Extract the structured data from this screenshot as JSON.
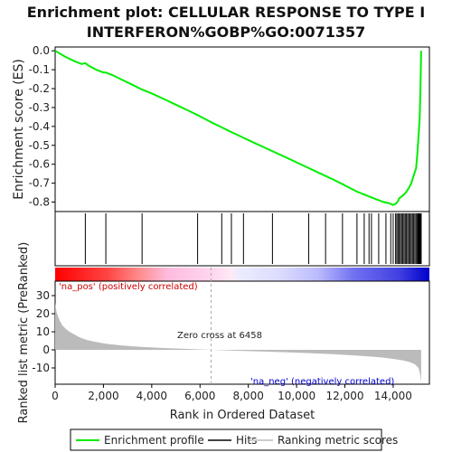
{
  "chart_data": {
    "type": "line",
    "title_lines": [
      "Enrichment plot: CELLULAR RESPONSE TO TYPE I",
      "INTERFERON%GOBP%GO:0071357"
    ],
    "top_panel": {
      "ylabel": "Enrichment score (ES)",
      "ylim": [
        -0.85,
        0.02
      ],
      "yticks": [
        0.0,
        -0.1,
        -0.2,
        -0.3,
        -0.4,
        -0.5,
        -0.6,
        -0.7,
        -0.8
      ],
      "ytick_labels": [
        "0.0",
        "-0.1",
        "-0.2",
        "-0.3",
        "-0.4",
        "-0.5",
        "-0.6",
        "-0.7",
        "-0.8"
      ],
      "series": [
        {
          "name": "Enrichment profile",
          "color": "#00ee00",
          "x": [
            0,
            400,
            800,
            1100,
            1250,
            1400,
            1700,
            2000,
            2100,
            2400,
            2800,
            3200,
            3600,
            4000,
            4500,
            5000,
            5500,
            5900,
            6200,
            6500,
            6900,
            7300,
            7800,
            8300,
            8900,
            9500,
            10000,
            10500,
            11000,
            11500,
            11900,
            12200,
            12500,
            12800,
            13000,
            13200,
            13400,
            13600,
            13800,
            14000,
            14100,
            14200,
            14250,
            14350,
            14450,
            14550,
            14650,
            14750,
            14850,
            14950,
            15000,
            15050,
            15100,
            15130,
            15160
          ],
          "y": [
            0.0,
            -0.03,
            -0.055,
            -0.07,
            -0.065,
            -0.08,
            -0.1,
            -0.115,
            -0.115,
            -0.13,
            -0.155,
            -0.18,
            -0.205,
            -0.225,
            -0.255,
            -0.285,
            -0.315,
            -0.34,
            -0.36,
            -0.38,
            -0.405,
            -0.43,
            -0.46,
            -0.49,
            -0.525,
            -0.56,
            -0.59,
            -0.62,
            -0.65,
            -0.68,
            -0.705,
            -0.725,
            -0.745,
            -0.76,
            -0.77,
            -0.78,
            -0.79,
            -0.8,
            -0.805,
            -0.815,
            -0.81,
            -0.795,
            -0.78,
            -0.77,
            -0.76,
            -0.745,
            -0.725,
            -0.7,
            -0.66,
            -0.62,
            -0.55,
            -0.45,
            -0.35,
            -0.2,
            0.0
          ]
        }
      ]
    },
    "hits": {
      "name": "Hits",
      "positions": [
        1250,
        2100,
        3600,
        5900,
        6900,
        7300,
        7800,
        9000,
        10500,
        11200,
        11900,
        12500,
        12800,
        13000,
        13100,
        13400,
        13700,
        13900,
        14000,
        14100,
        14150,
        14200,
        14250,
        14300,
        14350,
        14400,
        14450,
        14500,
        14550,
        14600,
        14650,
        14700,
        14750,
        14800,
        14850,
        14900,
        14950,
        15000,
        15020,
        15040,
        15060,
        15080,
        15100,
        15120,
        15140,
        15160
      ]
    },
    "bottom_panel": {
      "ylabel": "Ranked list metric (PreRanked)",
      "xlabel": "Rank in Ordered Dataset",
      "ylim": [
        -19,
        38
      ],
      "yticks": [
        30,
        20,
        10,
        0,
        -10
      ],
      "xlim": [
        0,
        15500
      ],
      "xticks": [
        0,
        2000,
        4000,
        6000,
        8000,
        10000,
        12000,
        14000
      ],
      "xtick_labels": [
        "0",
        "2,000",
        "4,000",
        "6,000",
        "8,000",
        "10,000",
        "12,000",
        "14,000"
      ],
      "series": [
        {
          "name": "Ranking metric scores",
          "color": "#bbbbbb",
          "x": [
            0,
            20,
            60,
            120,
            200,
            300,
            450,
            600,
            800,
            1000,
            1300,
            1700,
            2200,
            2800,
            3500,
            4500,
            5500,
            6458,
            7500,
            8500,
            9500,
            10500,
            11500,
            12300,
            13000,
            13600,
            14000,
            14400,
            14700,
            14900,
            15050,
            15120,
            15160
          ],
          "y": [
            26,
            24,
            21,
            18.5,
            16,
            13.5,
            11.5,
            10,
            8.5,
            7,
            5.5,
            4.3,
            3.2,
            2.4,
            1.7,
            1.0,
            0.5,
            0,
            -0.5,
            -0.9,
            -1.3,
            -1.8,
            -2.4,
            -3.0,
            -3.6,
            -4.3,
            -5.0,
            -5.8,
            -6.8,
            -8.0,
            -10.0,
            -14.0,
            -18.0
          ]
        }
      ],
      "zero_cross": 6458,
      "annotations": {
        "pos_label": "'na_pos' (positively correlated)",
        "neg_label": "'na_neg' (negatively correlated)",
        "zero_cross_label": "Zero cross at 6458"
      },
      "annotation_colors": {
        "pos": "#cc0000",
        "neg": "#0000cc"
      }
    },
    "legend": {
      "placement": "bottom",
      "entries": [
        {
          "label": "Enrichment profile",
          "color": "#00ee00"
        },
        {
          "label": "Hits",
          "color": "#444444"
        },
        {
          "label": "Ranking metric scores",
          "color": "#cccccc"
        }
      ]
    }
  }
}
